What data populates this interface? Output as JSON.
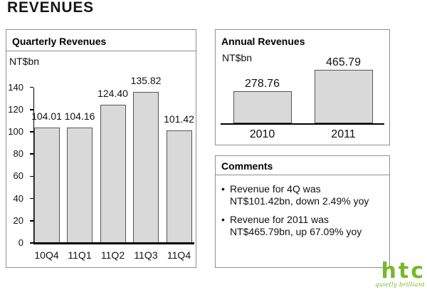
{
  "page": {
    "title": "REVENUES"
  },
  "quarterly": {
    "header": "Quarterly Revenues",
    "unit_label": "NT$bn"
  },
  "annual": {
    "header": "Annual Revenues",
    "unit_label": "NT$bn"
  },
  "comments": {
    "header": "Comments",
    "bullet": "•",
    "items": [
      {
        "lines": [
          "Revenue for 4Q was",
          "NT$101.42bn, down 2.49% yoy"
        ]
      },
      {
        "lines": [
          "Revenue for 2011 was",
          "NT$465.79bn, up 67.09% yoy"
        ]
      }
    ]
  },
  "branding": {
    "logo_text": "htc",
    "tagline": "quietly brilliant",
    "brand_color": "#76B82A"
  },
  "colors": {
    "bar_fill": "#d9d9d9",
    "bar_border": "#555555",
    "panel_border": "#8f8f8f",
    "axis": "#000000",
    "text": "#111111"
  },
  "chart_data": [
    {
      "type": "bar",
      "title": "Quarterly Revenues",
      "ylabel": "NT$bn",
      "xlabel": "",
      "categories": [
        "10Q4",
        "11Q1",
        "11Q2",
        "11Q3",
        "11Q4"
      ],
      "values": [
        104.01,
        104.16,
        124.4,
        135.82,
        101.42
      ],
      "data_labels": [
        "104.01",
        "104.16",
        "124.40",
        "135.82",
        "101.42"
      ],
      "ylim": [
        0,
        140
      ],
      "yticks": [
        0,
        20,
        40,
        60,
        80,
        100,
        120,
        140
      ],
      "grid": false,
      "legend": false,
      "bar_color": "#d9d9d9",
      "bar_border": "#555555"
    },
    {
      "type": "bar",
      "title": "Annual Revenues",
      "ylabel": "NT$bn",
      "xlabel": "",
      "categories": [
        "2010",
        "2011"
      ],
      "values": [
        278.76,
        465.79
      ],
      "data_labels": [
        "278.76",
        "465.79"
      ],
      "ylim": [
        0,
        560
      ],
      "yticks": [],
      "grid": false,
      "legend": false,
      "bar_color": "#d9d9d9",
      "bar_border": "#555555"
    }
  ]
}
